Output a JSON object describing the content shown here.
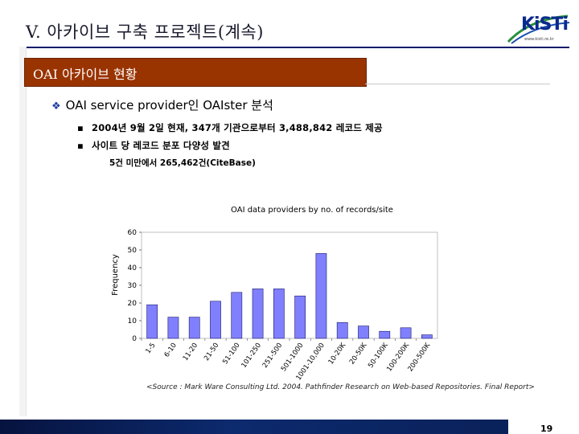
{
  "slide": {
    "title": "V. 아카이브 구축 프로젝트(계속)",
    "section_label": "OAI 아카이브 현황",
    "logo_text": "KiSTi",
    "logo_url": "www.kisti.re.kr",
    "bullet_main": "OAI service provider인 OAIster 분석",
    "sub_bullets": [
      "2004년 9월 2일 현재, 347개 기관으로부터 3,488,842 레코드 제공",
      "사이트 당 레코드 분포 다양성 발견"
    ],
    "note": "5건 미만에서 265,462건(CiteBase)",
    "source": "<Source : Mark Ware Consulting Ltd. 2004. Pathfinder Research on Web-based Repositories. Final Report>",
    "page_number": "19",
    "colors": {
      "section_bg": "#993300",
      "bar_fill": "#8080ff",
      "bottom_bar": "#0a1f55"
    }
  },
  "chart_data": {
    "type": "bar",
    "title": "OAI data providers by no. of records/site",
    "xlabel": "",
    "ylabel": "Frequency",
    "categories": [
      "1-5",
      "6-10",
      "11-20",
      "21-50",
      "51-100",
      "101-250",
      "251-500",
      "501-1000",
      "1001-10,000",
      "10-20K",
      "20-50K",
      "50-100K",
      "100-200K",
      "200-500K"
    ],
    "values": [
      19,
      12,
      12,
      21,
      26,
      28,
      28,
      24,
      48,
      9,
      7,
      4,
      6,
      2
    ],
    "yticks": [
      "0",
      "10",
      "20",
      "30",
      "40",
      "50",
      "60"
    ],
    "ylim": [
      0,
      60
    ],
    "grid": false,
    "legend": "none"
  }
}
